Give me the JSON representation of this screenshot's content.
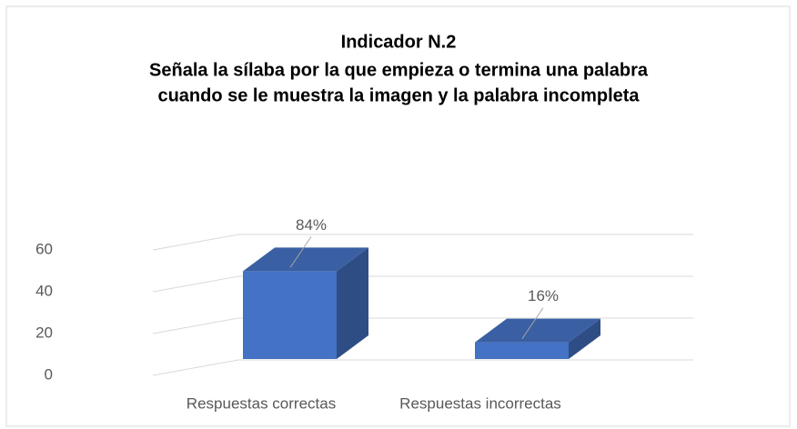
{
  "chart_data": {
    "type": "bar3d",
    "title": [
      "Indicador N.2",
      "Señala la sílaba por la que empieza o termina una palabra",
      "cuando se le muestra la imagen y la palabra incompleta"
    ],
    "categories": [
      "Respuestas correctas",
      "Respuestas incorrectas"
    ],
    "values": [
      42,
      8
    ],
    "value_labels": [
      "84%",
      "16%"
    ],
    "color": "#4472c4",
    "ylim": [
      0,
      60
    ],
    "yticks": [
      0,
      20,
      40,
      60
    ],
    "grid": true
  }
}
